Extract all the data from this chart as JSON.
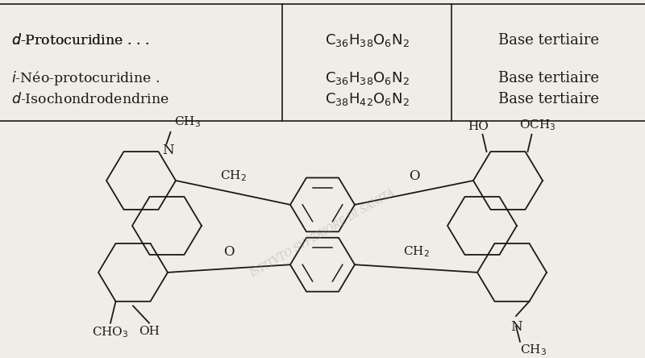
{
  "bg_color": "#f0ede6",
  "border_color": "#1a1a1a",
  "text_color": "#1a1a1a",
  "row1_col1": "$d$-Protocuridine . . .",
  "row1_col2": "$C_{36}H_{38}O_6N_2$",
  "row1_col3": "Base tertiaire",
  "row2a_col1": "$i$-Néo-protocuridine .",
  "row2b_col1": "$d$-Isochondrodendrine",
  "row2a_col2": "$C_{36}H_{38}O_6N_2$",
  "row2b_col2": "$C_{38}H_{42}O_6N_2$",
  "row2a_col3": "Base tertiaire",
  "row2b_col3": "Base tertiaire",
  "lw": 1.3
}
